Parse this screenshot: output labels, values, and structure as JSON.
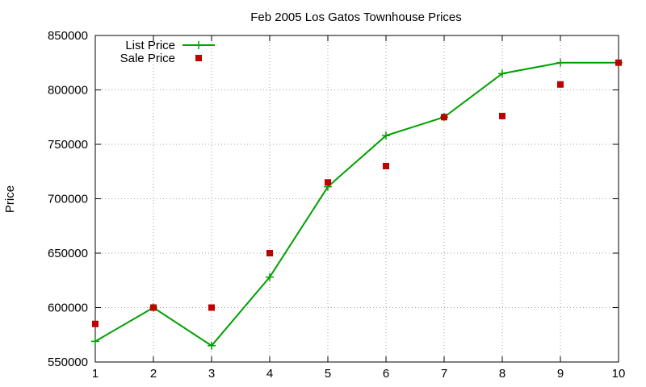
{
  "chart_data": {
    "type": "line",
    "title": "Feb 2005 Los Gatos Townhouse Prices",
    "xlabel": "",
    "ylabel": "Price",
    "xlim": [
      1,
      10
    ],
    "ylim": [
      550000,
      850000
    ],
    "x_ticks": [
      1,
      2,
      3,
      4,
      5,
      6,
      7,
      8,
      9,
      10
    ],
    "y_ticks": [
      550000,
      600000,
      650000,
      700000,
      750000,
      800000,
      850000
    ],
    "grid": true,
    "legend_position": "top-left",
    "series": [
      {
        "name": "List Price",
        "style": "linespoints",
        "marker": "plus",
        "color": "#00a000",
        "x": [
          1,
          2,
          3,
          4,
          5,
          6,
          7,
          8,
          9,
          10
        ],
        "y": [
          569000,
          600000,
          565000,
          628000,
          711000,
          758000,
          775000,
          815000,
          825000,
          825000
        ]
      },
      {
        "name": "Sale Price",
        "style": "points",
        "marker": "square",
        "color": "#c00000",
        "x": [
          1,
          2,
          3,
          4,
          5,
          6,
          7,
          8,
          9,
          10
        ],
        "y": [
          585000,
          600000,
          600000,
          650000,
          715000,
          730000,
          775000,
          776000,
          805000,
          825000
        ]
      }
    ]
  }
}
